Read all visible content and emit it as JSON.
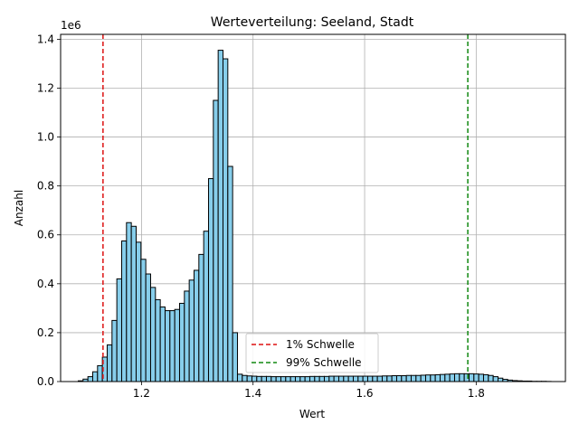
{
  "chart_data": {
    "type": "histogram",
    "title": "Werteverteilung: Seeland, Stadt",
    "xlabel": "Wert",
    "ylabel": "Anzahl",
    "y_offset_text": "1e6",
    "xlim": [
      1.055,
      1.96
    ],
    "ylim": [
      0,
      1.42
    ],
    "x_ticks": [
      1.2,
      1.4,
      1.6,
      1.8
    ],
    "x_tick_labels": [
      "1.2",
      "1.4",
      "1.6",
      "1.8"
    ],
    "y_ticks": [
      0,
      0.2,
      0.4,
      0.6,
      0.8,
      1.0,
      1.2,
      1.4
    ],
    "y_tick_labels": [
      "0.0",
      "0.2",
      "0.4",
      "0.6",
      "0.8",
      "1.0",
      "1.2",
      "1.4"
    ],
    "grid": true,
    "bar_color": "#87ceeb",
    "bar_edge_color": "#000000",
    "bin_start": 1.0866,
    "bin_width": 0.00865,
    "counts_millions": [
      0.003,
      0.01,
      0.02,
      0.04,
      0.065,
      0.1,
      0.15,
      0.25,
      0.42,
      0.575,
      0.65,
      0.635,
      0.57,
      0.5,
      0.44,
      0.385,
      0.335,
      0.305,
      0.29,
      0.29,
      0.295,
      0.32,
      0.37,
      0.415,
      0.455,
      0.52,
      0.615,
      0.83,
      1.15,
      1.355,
      1.32,
      0.88,
      0.2,
      0.03,
      0.025,
      0.023,
      0.022,
      0.021,
      0.021,
      0.021,
      0.02,
      0.02,
      0.02,
      0.02,
      0.02,
      0.02,
      0.02,
      0.02,
      0.021,
      0.021,
      0.021,
      0.021,
      0.022,
      0.022,
      0.022,
      0.022,
      0.022,
      0.022,
      0.022,
      0.022,
      0.022,
      0.022,
      0.022,
      0.023,
      0.023,
      0.024,
      0.024,
      0.024,
      0.025,
      0.025,
      0.025,
      0.026,
      0.027,
      0.027,
      0.028,
      0.029,
      0.03,
      0.031,
      0.032,
      0.032,
      0.032,
      0.032,
      0.031,
      0.03,
      0.028,
      0.025,
      0.02,
      0.014,
      0.009,
      0.006,
      0.004,
      0.003,
      0.002,
      0.002,
      0.001,
      0.001,
      0.001,
      0.0005
    ],
    "threshold_lines": [
      {
        "name": "1% Schwelle",
        "x": 1.131,
        "color": "#dd1111"
      },
      {
        "name": "99% Schwelle",
        "x": 1.785,
        "color": "#118811"
      }
    ],
    "legend_position": "lower-center"
  }
}
